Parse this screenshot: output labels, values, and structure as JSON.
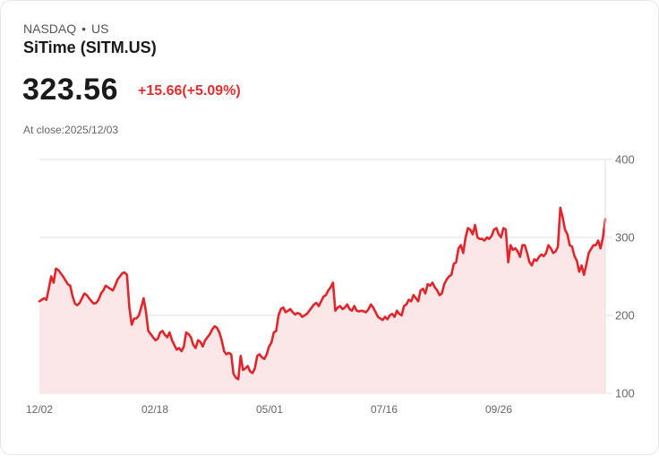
{
  "header": {
    "exchange": "NASDAQ",
    "separator": "•",
    "market": "US",
    "title": "SiTime (SITM.US)",
    "price": "323.56",
    "change": "+15.66(+5.09%)",
    "close_label": "At close:2025/12/03"
  },
  "colors": {
    "line": "#e0262b",
    "fill": "#fbe7e8",
    "grid": "#e2e2e2",
    "change": "#e02f2f"
  },
  "chart_data": {
    "type": "area",
    "title": "SiTime (SITM.US)",
    "xlabel": "",
    "ylabel": "",
    "ylim": [
      100,
      400
    ],
    "yticks": [
      400,
      300,
      200,
      100
    ],
    "xticks": [
      "12/02",
      "02/18",
      "05/01",
      "07/16",
      "09/26"
    ],
    "grid": true,
    "legend": "none",
    "x_range": [
      "2024/12/02",
      "2025/12/03"
    ],
    "values": [
      218,
      220,
      222,
      220,
      235,
      250,
      242,
      260,
      258,
      254,
      250,
      245,
      240,
      238,
      225,
      215,
      213,
      216,
      222,
      228,
      226,
      222,
      218,
      215,
      216,
      220,
      228,
      232,
      238,
      236,
      234,
      232,
      238,
      246,
      250,
      254,
      255,
      252,
      210,
      188,
      196,
      196,
      200,
      210,
      222,
      205,
      180,
      176,
      172,
      168,
      170,
      178,
      180,
      175,
      172,
      178,
      168,
      162,
      156,
      158,
      154,
      160,
      178,
      176,
      172,
      162,
      158,
      168,
      166,
      160,
      168,
      172,
      176,
      182,
      186,
      184,
      178,
      168,
      154,
      150,
      152,
      150,
      125,
      120,
      118,
      148,
      130,
      132,
      135,
      128,
      126,
      132,
      148,
      150,
      146,
      144,
      150,
      160,
      165,
      178,
      180,
      200,
      208,
      210,
      204,
      206,
      208,
      204,
      201,
      203,
      202,
      198,
      200,
      202,
      206,
      210,
      214,
      216,
      212,
      218,
      224,
      226,
      232,
      236,
      242,
      206,
      210,
      212,
      208,
      210,
      214,
      208,
      206,
      212,
      206,
      205,
      206,
      205,
      204,
      208,
      214,
      210,
      204,
      198,
      196,
      194,
      198,
      195,
      200,
      202,
      198,
      206,
      202,
      200,
      212,
      214,
      220,
      218,
      226,
      222,
      218,
      232,
      234,
      228,
      240,
      238,
      242,
      236,
      232,
      226,
      228,
      240,
      246,
      250,
      252,
      266,
      268,
      286,
      290,
      280,
      300,
      312,
      310,
      304,
      316,
      300,
      298,
      298,
      296,
      300,
      298,
      302,
      310,
      312,
      304,
      300,
      312,
      310,
      268,
      290,
      284,
      286,
      282,
      275,
      290,
      290,
      280,
      268,
      264,
      272,
      270,
      275,
      278,
      276,
      280,
      290,
      286,
      280,
      282,
      288,
      338,
      326,
      310,
      304,
      290,
      288,
      276,
      270,
      256,
      264,
      252,
      265,
      280,
      285,
      290,
      290,
      296,
      286,
      300,
      323.56
    ]
  }
}
